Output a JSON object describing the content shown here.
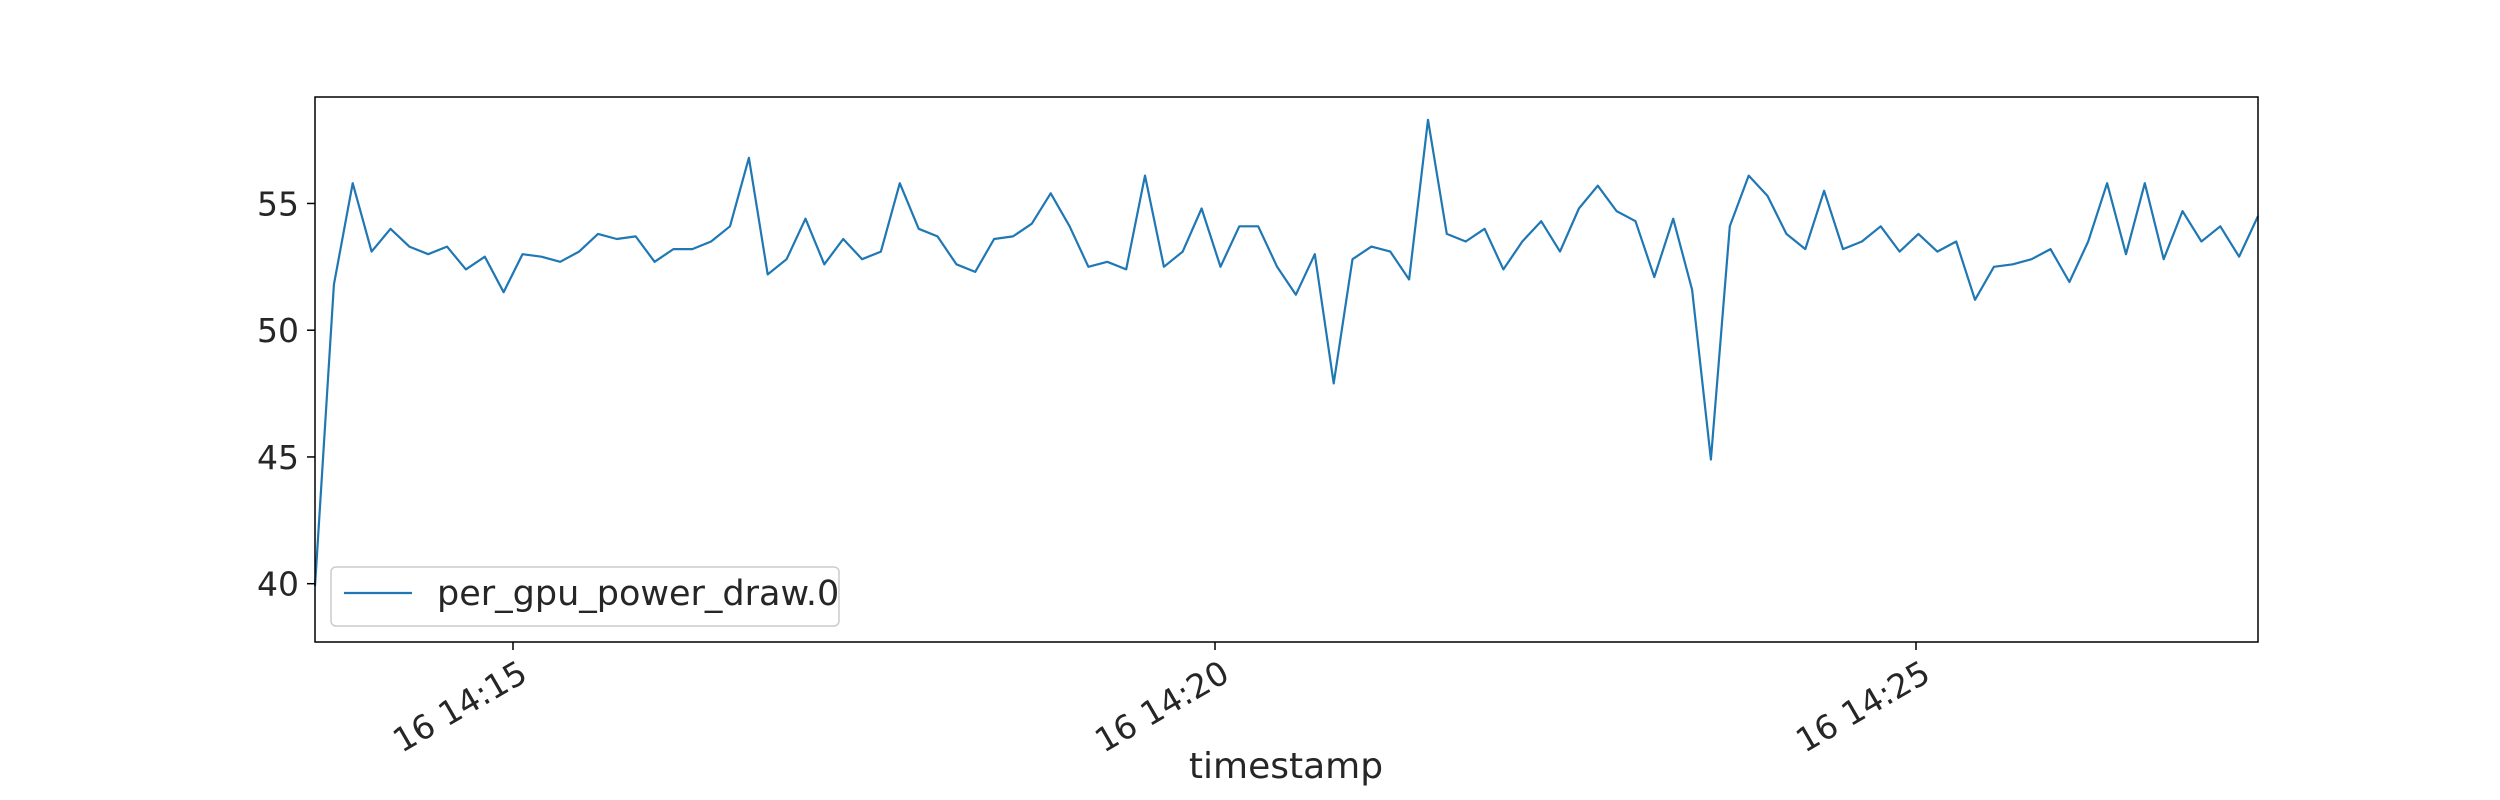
{
  "chart_data": {
    "type": "line",
    "title": "",
    "xlabel": "timestamp",
    "ylabel": "",
    "x_tick_labels": [
      "16 14:15",
      "16 14:20",
      "16 14:25"
    ],
    "y_ticks": [
      40,
      45,
      50,
      55
    ],
    "ylim": [
      37.7,
      59.2
    ],
    "grid": false,
    "legend_position": "lower-left",
    "series": [
      {
        "name": "per_gpu_power_draw.0",
        "color": "#1f77b4",
        "values": [
          39.9,
          51.8,
          55.8,
          53.1,
          54.0,
          53.3,
          53.0,
          53.3,
          52.4,
          52.9,
          51.5,
          53.0,
          52.9,
          52.7,
          53.1,
          53.8,
          53.6,
          53.7,
          52.7,
          53.2,
          53.2,
          53.5,
          54.1,
          56.8,
          52.2,
          52.8,
          54.4,
          52.6,
          53.6,
          52.8,
          53.1,
          55.8,
          54.0,
          53.7,
          52.6,
          52.3,
          53.6,
          53.7,
          54.2,
          55.4,
          54.1,
          52.5,
          52.7,
          52.4,
          56.1,
          52.5,
          53.1,
          54.8,
          52.5,
          54.1,
          54.1,
          52.5,
          51.4,
          53.0,
          47.9,
          52.8,
          53.3,
          53.1,
          52.0,
          58.3,
          53.8,
          53.5,
          54.0,
          52.4,
          53.5,
          54.3,
          53.1,
          54.8,
          55.7,
          54.7,
          54.3,
          52.1,
          54.4,
          51.6,
          44.9,
          54.1,
          56.1,
          55.3,
          53.8,
          53.2,
          55.5,
          53.2,
          53.5,
          54.1,
          53.1,
          53.8,
          53.1,
          53.5,
          51.2,
          52.5,
          52.6,
          52.8,
          53.2,
          51.9,
          53.5,
          55.8,
          53.0,
          55.8,
          52.8,
          54.7,
          53.5,
          54.1,
          52.9,
          54.5
        ]
      }
    ]
  }
}
